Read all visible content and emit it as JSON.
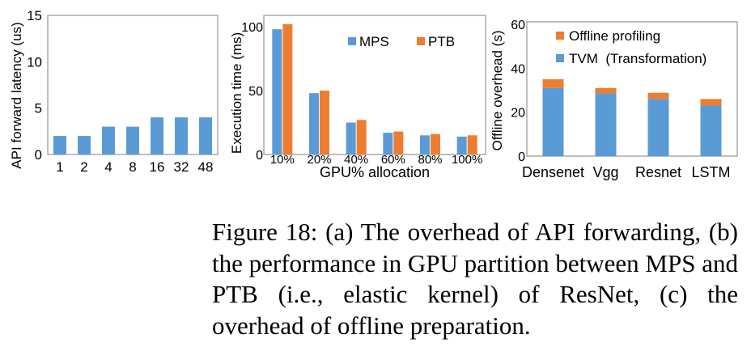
{
  "colors": {
    "blue": "#5b9bd5",
    "orange": "#ed7d31",
    "axis": "#7f7f7f"
  },
  "chart_data": [
    {
      "type": "bar",
      "ylabel": "API forward latency (us)",
      "xlabel": "",
      "categories": [
        "1",
        "2",
        "4",
        "8",
        "16",
        "32",
        "48"
      ],
      "values": [
        2,
        2,
        3,
        3,
        4,
        4,
        4
      ],
      "ylim": [
        0,
        15
      ],
      "yticks": [
        0,
        5,
        10,
        15
      ],
      "grid": false
    },
    {
      "type": "bar",
      "ylabel": "Execution time (ms)",
      "xlabel": "GPU% allocation",
      "categories": [
        "10%",
        "20%",
        "40%",
        "60%",
        "80%",
        "100%"
      ],
      "series": [
        {
          "name": "MPS",
          "values": [
            98,
            48,
            25,
            17,
            15,
            14
          ]
        },
        {
          "name": "PTB",
          "values": [
            102,
            50,
            27,
            18,
            16,
            15
          ]
        }
      ],
      "ylim": [
        0,
        105
      ],
      "yticks": [
        0,
        50,
        100
      ],
      "legend": "top-right",
      "grid": false
    },
    {
      "type": "bar",
      "stacked": true,
      "ylabel": "Offline overhead (s)",
      "xlabel": "",
      "categories": [
        "Densenet",
        "Vgg",
        "Resnet",
        "LSTM"
      ],
      "series": [
        {
          "name": "TVM  (Transformation)",
          "values": [
            31,
            28.5,
            26,
            23
          ]
        },
        {
          "name": "Offline profiling",
          "values": [
            4,
            2.5,
            2.8,
            3
          ]
        }
      ],
      "ylim": [
        0,
        60
      ],
      "yticks": [
        0,
        20,
        40,
        60
      ],
      "legend": "top-right",
      "grid": false
    }
  ],
  "caption": "Figure 18: (a) The overhead of API forwarding, (b) the performance in GPU partition between MPS and PTB (i.e., elastic kernel) of ResNet, (c) the overhead of offline preparation."
}
